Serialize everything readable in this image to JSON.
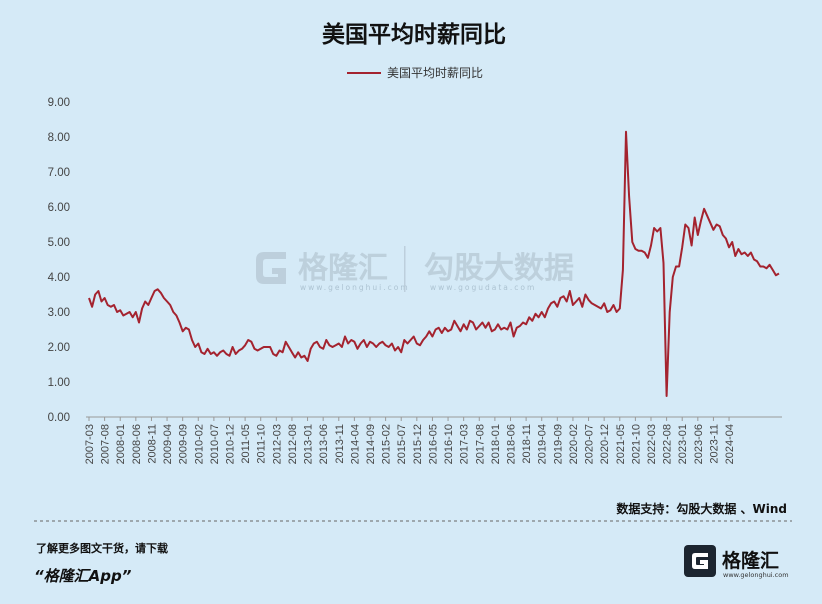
{
  "watermark": {
    "brand_cn": "格隆汇",
    "brand_en": "www.gelonghui.com",
    "data_cn": "勾股大数据",
    "data_en": "www.gogudata.com"
  },
  "source": "数据支持：勾股大数据 、Wind",
  "promo": {
    "line1": "了解更多图文干货，请下载",
    "line2": "“格隆汇App”"
  },
  "brand": {
    "name": "格隆汇",
    "url": "www.gelonghui.com"
  },
  "colors": {
    "series": "#a4232f",
    "background": "#d5eaf7"
  },
  "chart_data": {
    "type": "line",
    "title": "美国平均时薪同比",
    "xlabel": "",
    "ylabel": "",
    "ylim": [
      0,
      9
    ],
    "yticks": [
      "0.00",
      "1.00",
      "2.00",
      "3.00",
      "4.00",
      "5.00",
      "6.00",
      "7.00",
      "8.00",
      "9.00"
    ],
    "grid": false,
    "legend": "top-center",
    "x_start": "2007-03",
    "x_tick_labels": [
      "2007-03",
      "2007-08",
      "2008-01",
      "2008-06",
      "2008-11",
      "2009-04",
      "2009-09",
      "2010-02",
      "2010-07",
      "2010-12",
      "2011-05",
      "2011-10",
      "2012-03",
      "2012-08",
      "2013-01",
      "2013-06",
      "2013-11",
      "2014-04",
      "2014-09",
      "2015-02",
      "2015-07",
      "2015-12",
      "2016-05",
      "2016-10",
      "2017-03",
      "2017-08",
      "2018-01",
      "2018-06",
      "2018-11",
      "2019-04",
      "2019-09",
      "2020-02",
      "2020-07",
      "2020-12",
      "2021-05",
      "2021-10",
      "2022-03",
      "2022-08",
      "2023-01",
      "2023-06",
      "2023-11",
      "2024-04"
    ],
    "series": [
      {
        "name": "美国平均时薪同比",
        "values": [
          3.4,
          3.15,
          3.5,
          3.6,
          3.3,
          3.4,
          3.2,
          3.15,
          3.2,
          3.0,
          3.05,
          2.9,
          2.95,
          3.0,
          2.85,
          3.0,
          2.7,
          3.1,
          3.3,
          3.2,
          3.4,
          3.6,
          3.65,
          3.55,
          3.4,
          3.3,
          3.2,
          3.0,
          2.9,
          2.7,
          2.45,
          2.55,
          2.5,
          2.2,
          2.0,
          2.1,
          1.85,
          1.8,
          1.95,
          1.8,
          1.85,
          1.75,
          1.85,
          1.9,
          1.8,
          1.75,
          2.0,
          1.8,
          1.9,
          1.95,
          2.05,
          2.2,
          2.15,
          1.95,
          1.9,
          1.95,
          2.0,
          2.0,
          2.0,
          1.8,
          1.75,
          1.9,
          1.85,
          2.15,
          2.0,
          1.85,
          1.7,
          1.85,
          1.7,
          1.75,
          1.6,
          1.95,
          2.1,
          2.15,
          2.0,
          1.95,
          2.2,
          2.05,
          2.0,
          2.05,
          2.1,
          2.0,
          2.3,
          2.1,
          2.2,
          2.15,
          1.95,
          2.1,
          2.2,
          2.0,
          2.15,
          2.1,
          2.0,
          2.1,
          2.15,
          2.05,
          2.0,
          2.1,
          1.9,
          2.0,
          1.85,
          2.2,
          2.1,
          2.2,
          2.3,
          2.1,
          2.05,
          2.2,
          2.3,
          2.45,
          2.3,
          2.5,
          2.55,
          2.4,
          2.55,
          2.45,
          2.5,
          2.75,
          2.6,
          2.45,
          2.65,
          2.5,
          2.75,
          2.7,
          2.5,
          2.6,
          2.7,
          2.55,
          2.7,
          2.45,
          2.5,
          2.65,
          2.5,
          2.55,
          2.5,
          2.7,
          2.3,
          2.55,
          2.6,
          2.7,
          2.65,
          2.85,
          2.75,
          2.95,
          2.85,
          3.0,
          2.85,
          3.1,
          3.25,
          3.3,
          3.15,
          3.4,
          3.45,
          3.3,
          3.6,
          3.2,
          3.3,
          3.4,
          3.15,
          3.5,
          3.35,
          3.25,
          3.2,
          3.15,
          3.1,
          3.25,
          3.0,
          3.05,
          3.2,
          3.0,
          3.1,
          4.2,
          8.15,
          6.3,
          5.0,
          4.8,
          4.75,
          4.75,
          4.7,
          4.55,
          4.9,
          5.4,
          5.3,
          5.4,
          4.4,
          0.6,
          3.0,
          4.0,
          4.3,
          4.3,
          4.85,
          5.5,
          5.4,
          4.9,
          5.7,
          5.2,
          5.6,
          5.95,
          5.75,
          5.55,
          5.35,
          5.5,
          5.45,
          5.2,
          5.1,
          4.85,
          5.0,
          4.6,
          4.8,
          4.65,
          4.7,
          4.6,
          4.7,
          4.5,
          4.45,
          4.3,
          4.3,
          4.25,
          4.35,
          4.2,
          4.05,
          4.1
        ]
      }
    ]
  }
}
